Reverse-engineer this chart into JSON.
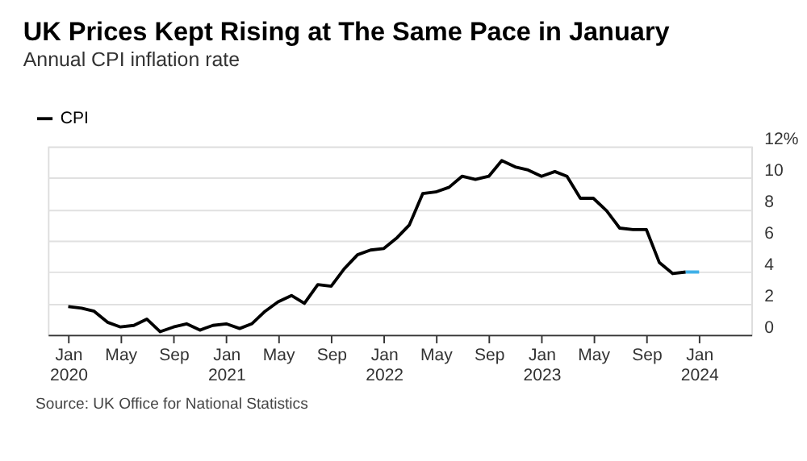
{
  "chart_data": {
    "type": "line",
    "title": "UK Prices Kept Rising at The Same Pace in January",
    "subtitle": "Annual CPI inflation rate",
    "x": [
      "2020-01",
      "2020-02",
      "2020-03",
      "2020-04",
      "2020-05",
      "2020-06",
      "2020-07",
      "2020-08",
      "2020-09",
      "2020-10",
      "2020-11",
      "2020-12",
      "2021-01",
      "2021-02",
      "2021-03",
      "2021-04",
      "2021-05",
      "2021-06",
      "2021-07",
      "2021-08",
      "2021-09",
      "2021-10",
      "2021-11",
      "2021-12",
      "2022-01",
      "2022-02",
      "2022-03",
      "2022-04",
      "2022-05",
      "2022-06",
      "2022-07",
      "2022-08",
      "2022-09",
      "2022-10",
      "2022-11",
      "2022-12",
      "2023-01",
      "2023-02",
      "2023-03",
      "2023-04",
      "2023-05",
      "2023-06",
      "2023-07",
      "2023-08",
      "2023-09",
      "2023-10",
      "2023-11",
      "2023-12"
    ],
    "series": [
      {
        "name": "CPI",
        "color": "#000000",
        "values": [
          1.8,
          1.7,
          1.5,
          0.8,
          0.5,
          0.6,
          1.0,
          0.2,
          0.5,
          0.7,
          0.3,
          0.6,
          0.7,
          0.4,
          0.7,
          1.5,
          2.1,
          2.5,
          2.0,
          3.2,
          3.1,
          4.2,
          5.1,
          5.4,
          5.5,
          6.2,
          7.0,
          9.0,
          9.1,
          9.4,
          10.1,
          9.9,
          10.1,
          11.1,
          10.7,
          10.5,
          10.1,
          10.4,
          10.1,
          8.7,
          8.7,
          7.9,
          6.8,
          6.7,
          6.7,
          4.6,
          3.9,
          4.0
        ]
      },
      {
        "color": "#3fb0e8",
        "x": [
          "2023-12",
          "2024-01"
        ],
        "values": [
          4.0,
          4.0
        ]
      }
    ],
    "xlim": [
      "2019-11-15",
      "2024-05"
    ],
    "xticks": [
      {
        "value": "2020-01",
        "label": "Jan 2020"
      },
      {
        "value": "2020-05",
        "label": "May"
      },
      {
        "value": "2020-09",
        "label": "Sep"
      },
      {
        "value": "2021-01",
        "label": "Jan 2021"
      },
      {
        "value": "2021-05",
        "label": "May"
      },
      {
        "value": "2021-09",
        "label": "Sep"
      },
      {
        "value": "2022-01",
        "label": "Jan 2022"
      },
      {
        "value": "2022-05",
        "label": "May"
      },
      {
        "value": "2022-09",
        "label": "Sep"
      },
      {
        "value": "2023-01",
        "label": "Jan 2023"
      },
      {
        "value": "2023-05",
        "label": "May"
      },
      {
        "value": "2023-09",
        "label": "Sep"
      },
      {
        "value": "2024-01",
        "label": "Jan 2024"
      }
    ],
    "ylim": [
      0,
      12
    ],
    "yticks": [
      0,
      2,
      4,
      6,
      8,
      10,
      {
        "value": 12,
        "label": "12%"
      }
    ],
    "grid": "y",
    "legend": "top left",
    "marker": "none",
    "line_style": "solid",
    "annotations": [
      "Source: UK Office for National Statistics"
    ]
  }
}
